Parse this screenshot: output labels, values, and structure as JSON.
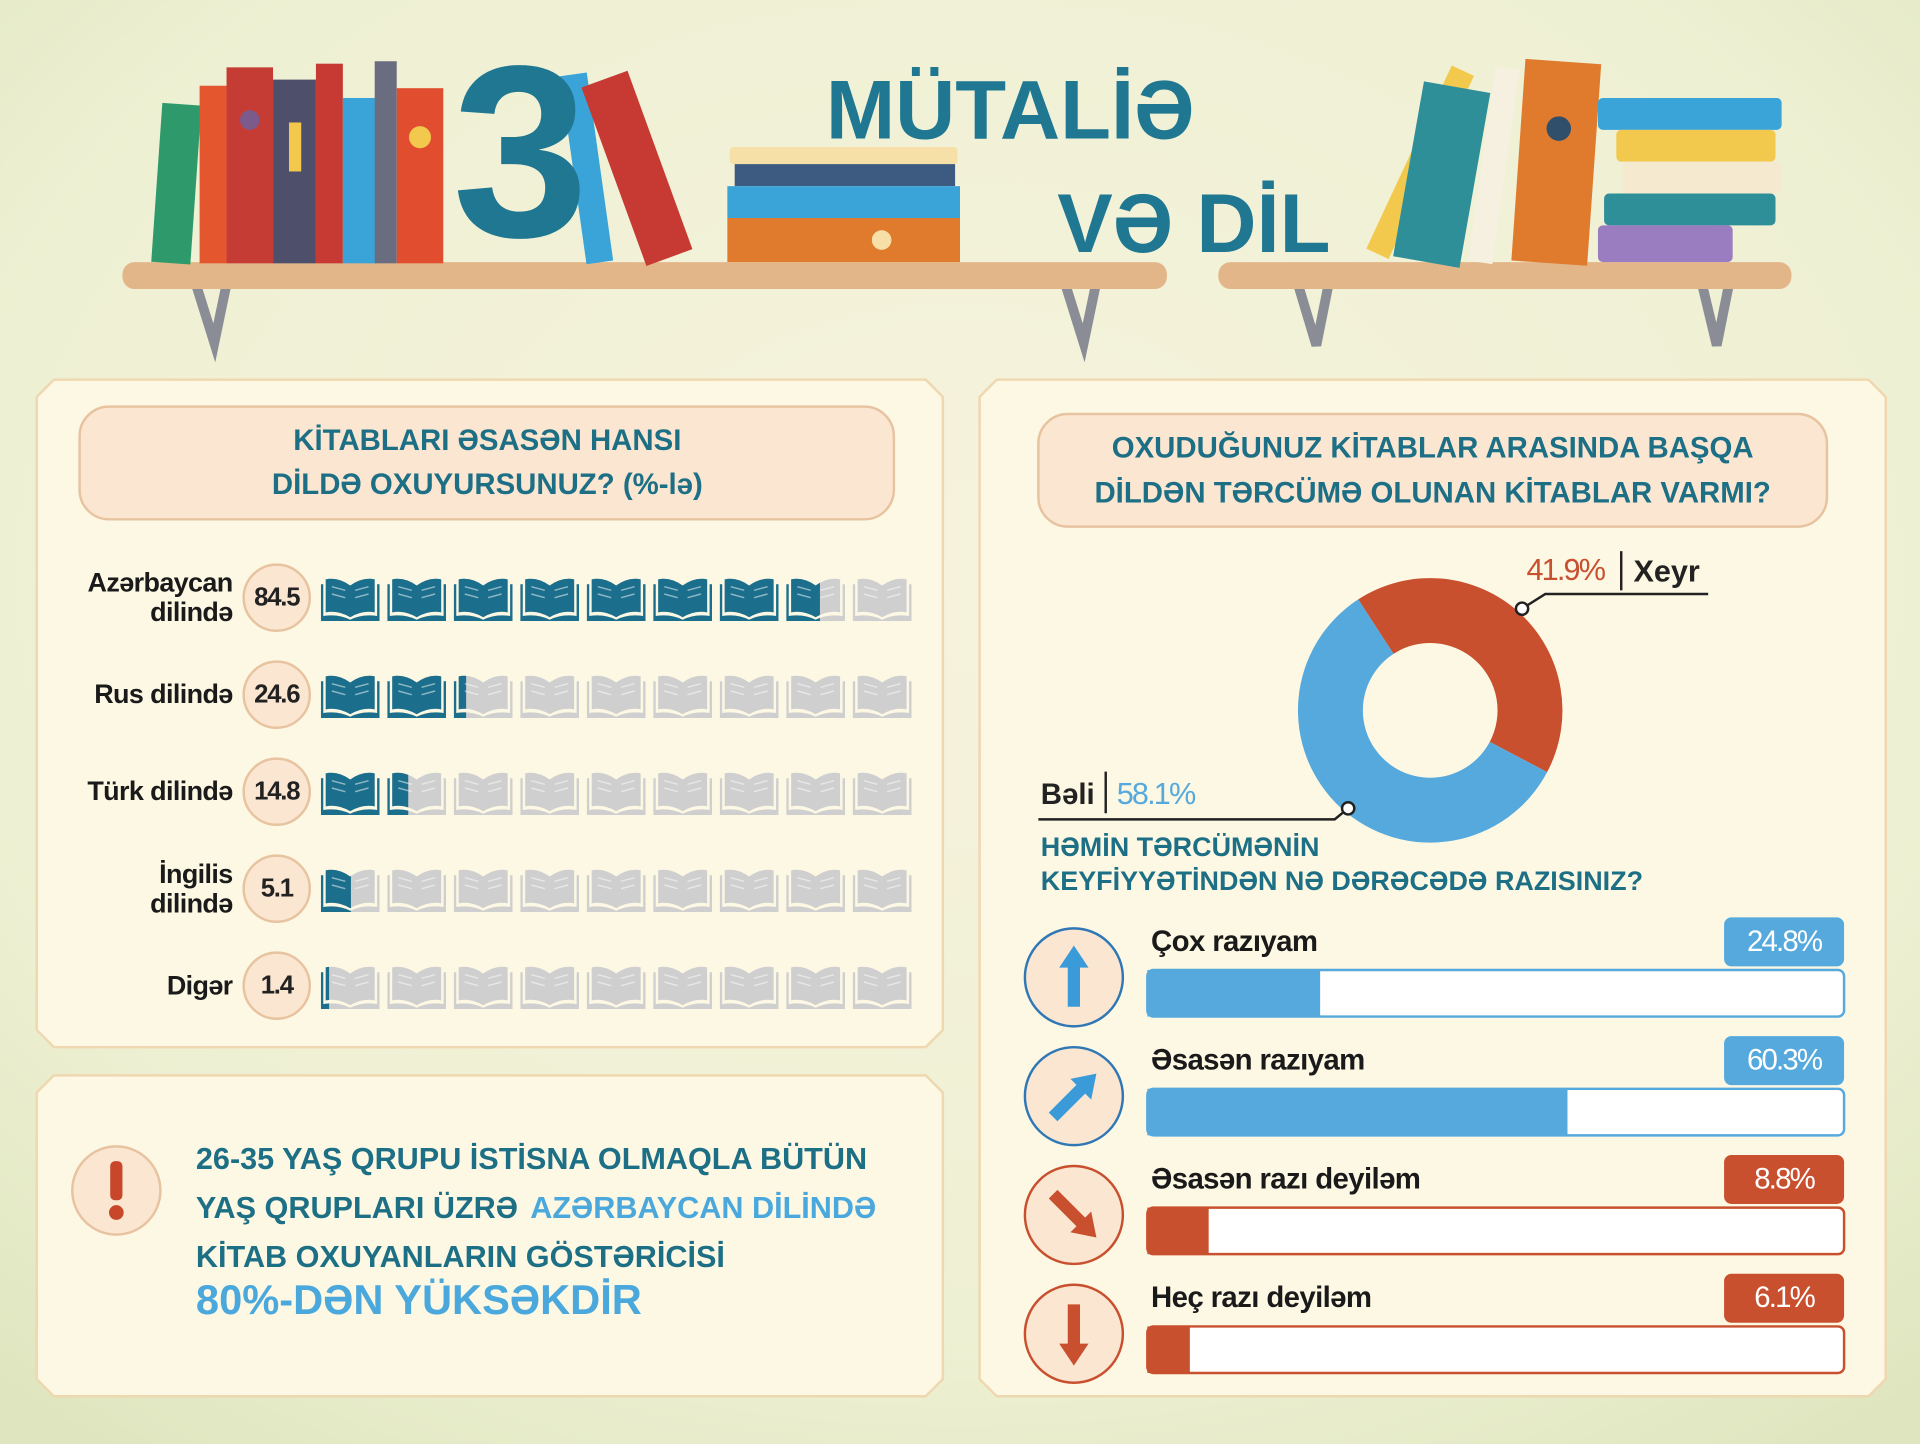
{
  "header": {
    "number": "3",
    "title": [
      "MÜTALİƏ",
      "VƏ DİL"
    ]
  },
  "chart_data": [
    {
      "type": "pictograph",
      "title": [
        "KİTABLARI ƏSASƏN HANSI",
        "DİLDƏ OXUYURSUNUZ? (%-lə)"
      ],
      "categories": [
        "Azərbaycan dilində",
        "Rus dilində",
        "Türk dilində",
        "İngilis dilində",
        "Digər"
      ],
      "values": [
        84.5,
        24.6,
        14.8,
        5.1,
        1.4
      ],
      "color": "#1b6f8c",
      "empty_color": "#cfcfcf",
      "xlim": [
        0,
        100
      ]
    },
    {
      "type": "donut",
      "title": [
        "OXUDUĞUNUZ KİTABLAR ARASINDA BAŞQA",
        "DİLDƏN TƏRCÜMƏ OLUNAN KİTABLAR VARMI?"
      ],
      "categories": [
        "Xeyr",
        "Bəli"
      ],
      "values": [
        41.9,
        58.1
      ],
      "value_labels": [
        "41.9%",
        "58.1%"
      ],
      "colors": [
        "#c8502e",
        "#55a9dd"
      ]
    },
    {
      "type": "hbar",
      "title": [
        "HƏMİN TƏRCÜMƏNİN",
        "KEYFİYYƏTİNDƏN NƏ DƏRƏCƏDƏ RAZISINIZ?"
      ],
      "categories": [
        "Çox razıyam",
        "Əsasən razıyam",
        "Əsasən razı deyiləm",
        "Heç razı deyiləm"
      ],
      "values": [
        24.8,
        60.3,
        8.8,
        6.1
      ],
      "value_labels": [
        "24.8%",
        "60.3%",
        "8.8%",
        "6.1%"
      ],
      "colors": [
        "#55a9dd",
        "#55a9dd",
        "#c8502e",
        "#c8502e"
      ],
      "xlim": [
        0,
        100
      ]
    }
  ],
  "note": {
    "lines": [
      [
        {
          "text": "26-35 YAŞ QRUPU İSTİSNA OLMAQLA BÜTÜN"
        }
      ],
      [
        {
          "text": "YAŞ QRUPLARI ÜZRƏ"
        },
        {
          "text": "AZƏRBAYCAN DİLİNDƏ",
          "highlight": true
        }
      ],
      [
        {
          "text": "KİTAB OXUYANLARIN GÖSTƏRİCİSİ"
        }
      ]
    ],
    "emphasis": "80%-DƏN YÜKSƏKDİR"
  }
}
